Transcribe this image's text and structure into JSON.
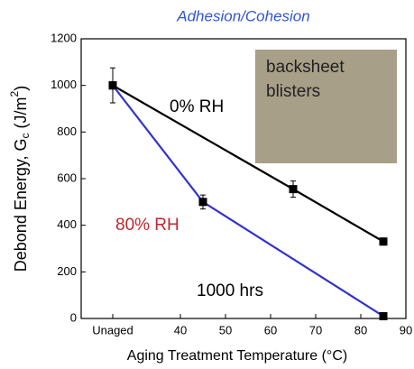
{
  "chart_data": {
    "type": "line",
    "title": "Adhesion/Cohesion",
    "ylabel": [
      "Debond Energy, G",
      "c",
      " (J/m",
      "2",
      ")"
    ],
    "xlabel": "Aging Treatment Temperature (°C)",
    "xlim": [
      18,
      90
    ],
    "ylim": [
      0,
      1200
    ],
    "xticks": [
      {
        "value": 25,
        "label": "Unaged"
      },
      40,
      50,
      60,
      70,
      80,
      90
    ],
    "yticks": [
      0,
      200,
      400,
      600,
      800,
      1000,
      1200
    ],
    "series": [
      {
        "name": "0% RH",
        "color": "#000000",
        "x": [
          25,
          65,
          85
        ],
        "values": [
          1000,
          555,
          330
        ],
        "errors": [
          75,
          35,
          15
        ]
      },
      {
        "name": "80% RH",
        "color": "#3333cc",
        "x": [
          25,
          45,
          85
        ],
        "values": [
          1000,
          500,
          10
        ],
        "errors": [
          0,
          30,
          5
        ]
      }
    ],
    "annotations": [
      "1000 hrs"
    ],
    "inset": [
      "backsheet",
      "blisters"
    ]
  }
}
